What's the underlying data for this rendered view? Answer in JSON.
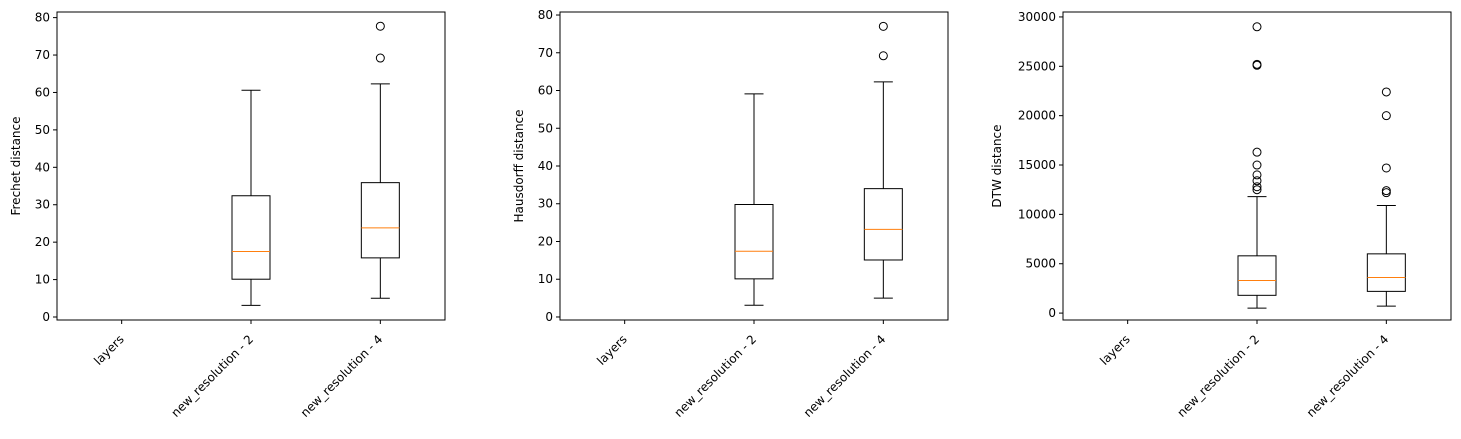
{
  "chart_data": [
    {
      "type": "box",
      "categories": [
        "layers",
        "new_resolution - 2",
        "new_resolution - 4"
      ],
      "ylabel": "Frechet distance",
      "ylim": [
        -0.8,
        81.5
      ],
      "yticks": [
        0,
        10,
        20,
        30,
        40,
        50,
        60,
        70,
        80
      ],
      "boxes": [
        null,
        {
          "whisker_low": 3.1,
          "q1": 10.1,
          "median": 17.5,
          "q3": 32.4,
          "whisker_high": 60.6,
          "outliers": []
        },
        {
          "whisker_low": 5.0,
          "q1": 15.8,
          "median": 23.8,
          "q3": 35.9,
          "whisker_high": 62.3,
          "outliers": [
            69.2,
            77.7
          ]
        }
      ],
      "colors": {
        "box": "#000000",
        "median": "#ff7f0e"
      }
    },
    {
      "type": "box",
      "categories": [
        "layers",
        "new_resolution - 2",
        "new_resolution - 4"
      ],
      "ylabel": "Hausdorff distance",
      "ylim": [
        -0.8,
        80.8
      ],
      "yticks": [
        0,
        10,
        20,
        30,
        40,
        50,
        60,
        70,
        80
      ],
      "boxes": [
        null,
        {
          "whisker_low": 3.1,
          "q1": 10.1,
          "median": 17.4,
          "q3": 29.8,
          "whisker_high": 59.1,
          "outliers": []
        },
        {
          "whisker_low": 5.0,
          "q1": 15.1,
          "median": 23.2,
          "q3": 34.0,
          "whisker_high": 62.3,
          "outliers": [
            69.2,
            77.0
          ]
        }
      ],
      "colors": {
        "box": "#000000",
        "median": "#ff7f0e"
      }
    },
    {
      "type": "box",
      "categories": [
        "layers",
        "new_resolution - 2",
        "new_resolution - 4"
      ],
      "ylabel": "DTW distance",
      "ylim": [
        -700,
        30500
      ],
      "yticks": [
        0,
        5000,
        10000,
        15000,
        20000,
        25000,
        30000
      ],
      "boxes": [
        null,
        {
          "whisker_low": 500,
          "q1": 1800,
          "median": 3300,
          "q3": 5800,
          "whisker_high": 11800,
          "outliers": [
            12500,
            12800,
            13400,
            14000,
            15000,
            16300,
            25100,
            25200,
            29000
          ]
        },
        {
          "whisker_low": 700,
          "q1": 2200,
          "median": 3600,
          "q3": 6000,
          "whisker_high": 10900,
          "outliers": [
            12200,
            12400,
            14700,
            20000,
            22400
          ]
        }
      ],
      "colors": {
        "box": "#000000",
        "median": "#ff7f0e"
      }
    }
  ]
}
